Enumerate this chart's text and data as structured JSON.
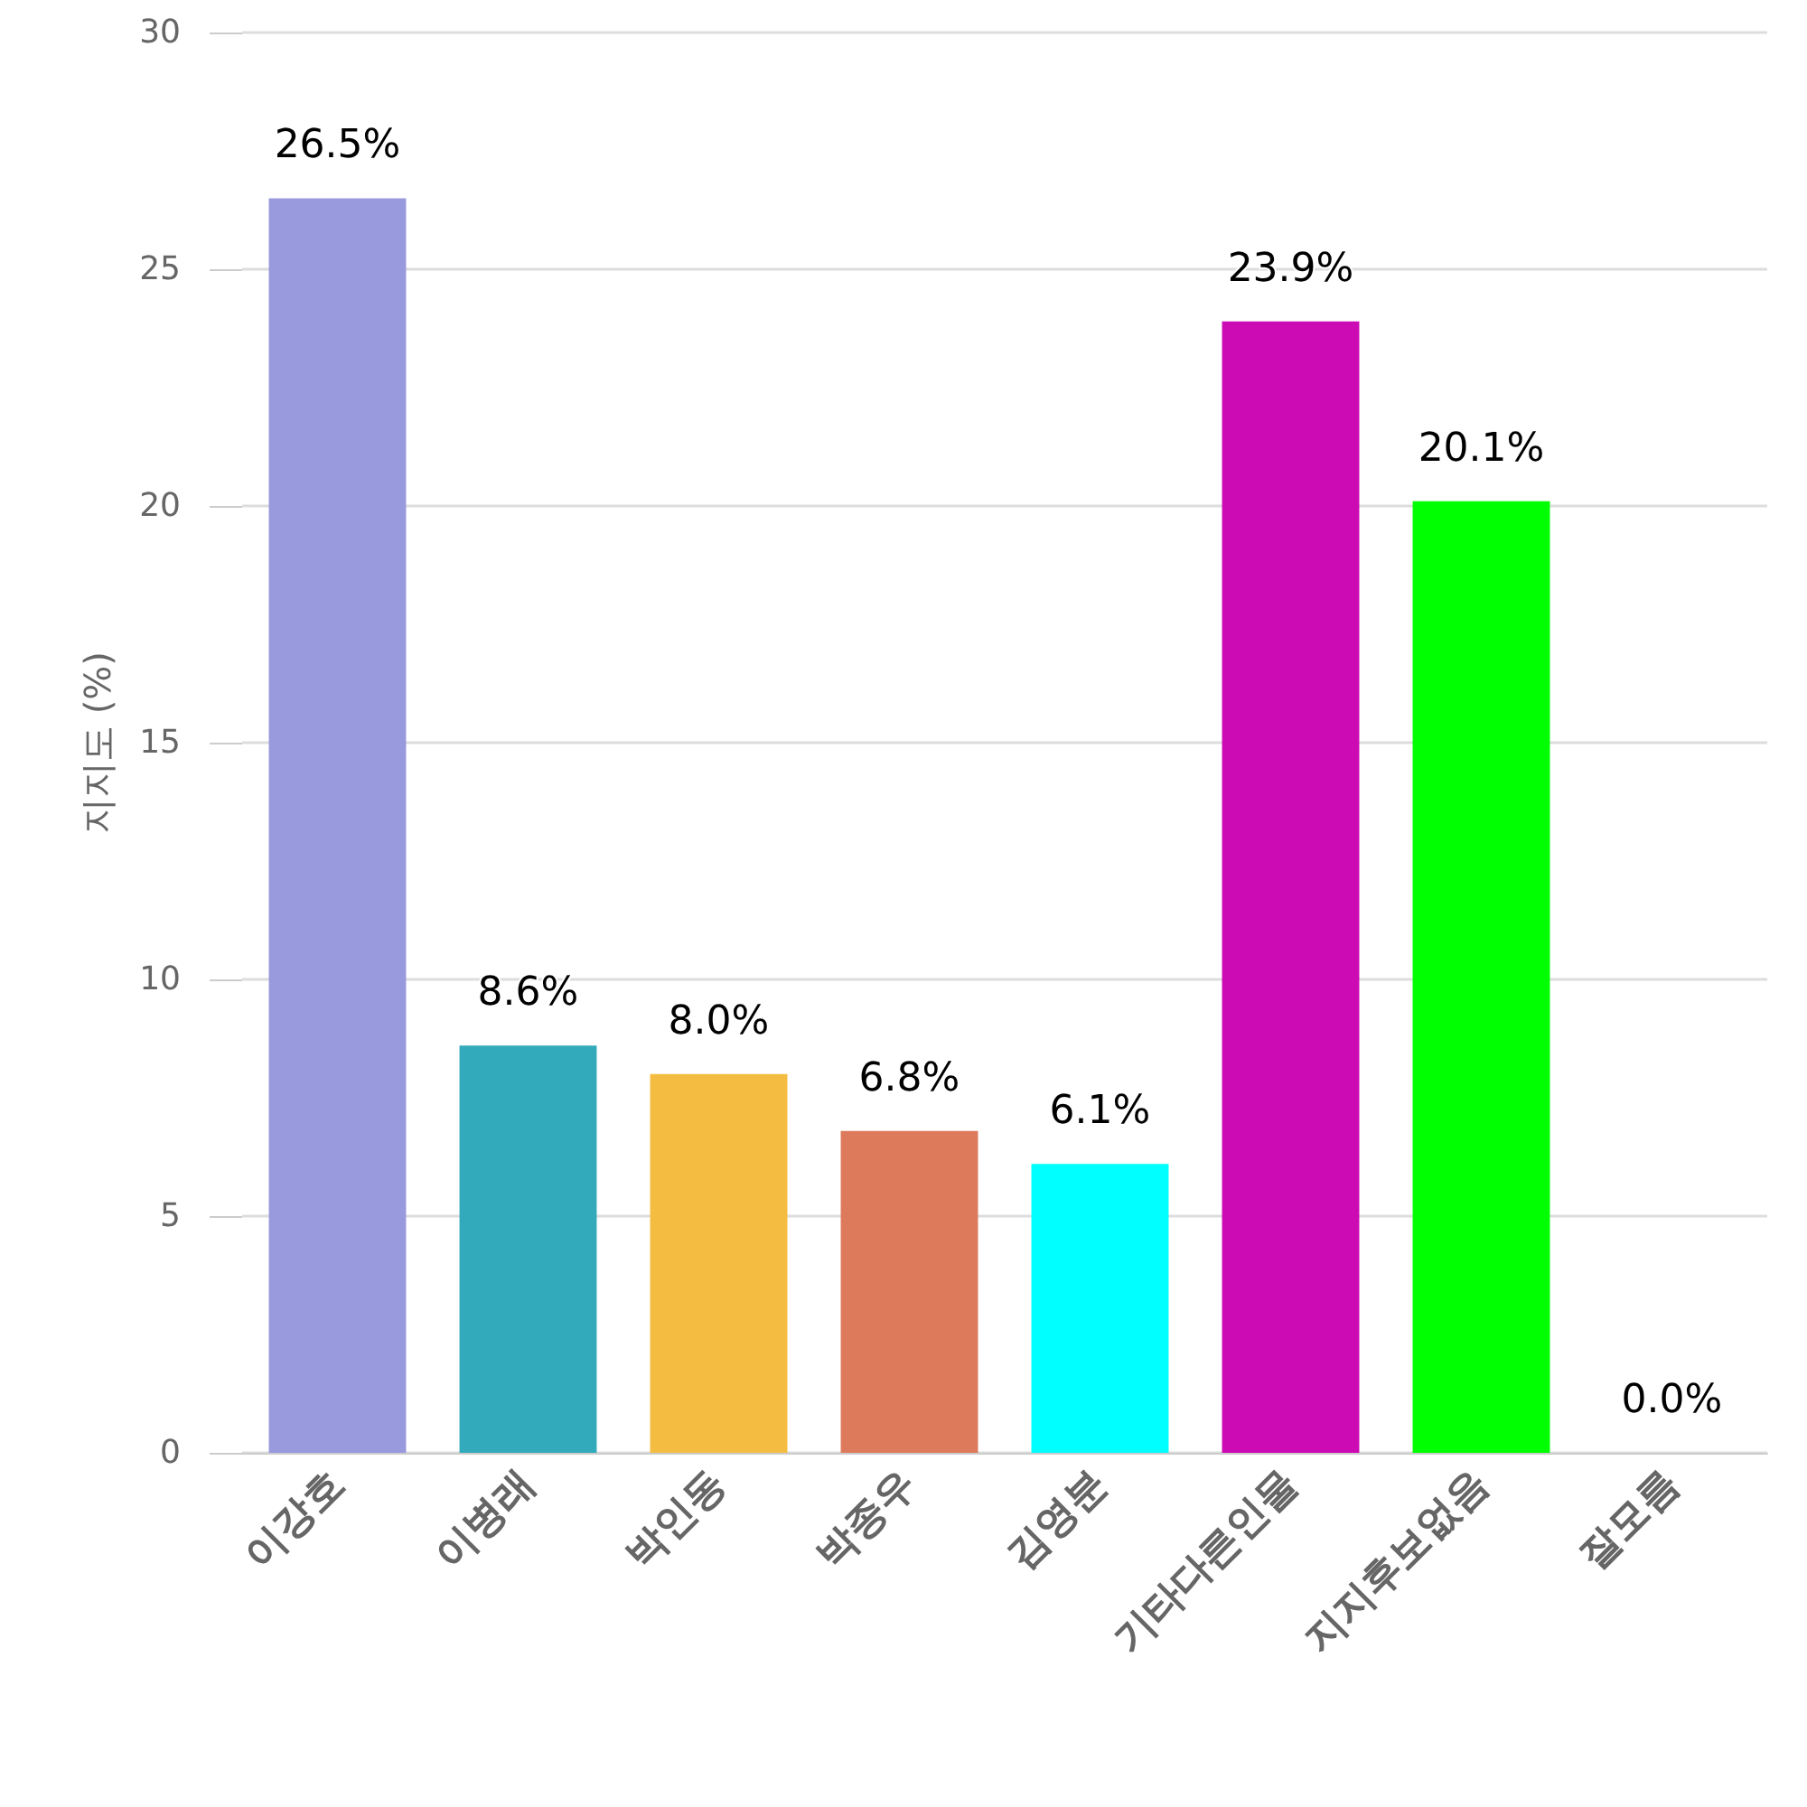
{
  "chart_data": {
    "type": "bar",
    "ylabel": "지지도 (%)",
    "categories": [
      "이강호",
      "이병래",
      "박인동",
      "박종우",
      "김영분",
      "기타다른인물",
      "지지후보없음",
      "잘모름"
    ],
    "values": [
      26.5,
      8.6,
      8.0,
      6.8,
      6.1,
      23.9,
      20.1,
      0.0
    ],
    "colors": [
      "#9999dd",
      "#33aabb",
      "#f4bd42",
      "#dd7a5c",
      "#00ffff",
      "#cc0bb4",
      "#00ff00",
      "#777777"
    ],
    "value_labels": [
      "26.5%",
      "8.6%",
      "8.0%",
      "6.8%",
      "6.1%",
      "23.9%",
      "20.1%",
      "0.0%"
    ],
    "ylim": [
      0,
      30
    ],
    "yticks": [
      0,
      5,
      10,
      15,
      20,
      25,
      30
    ],
    "grid": "y"
  }
}
